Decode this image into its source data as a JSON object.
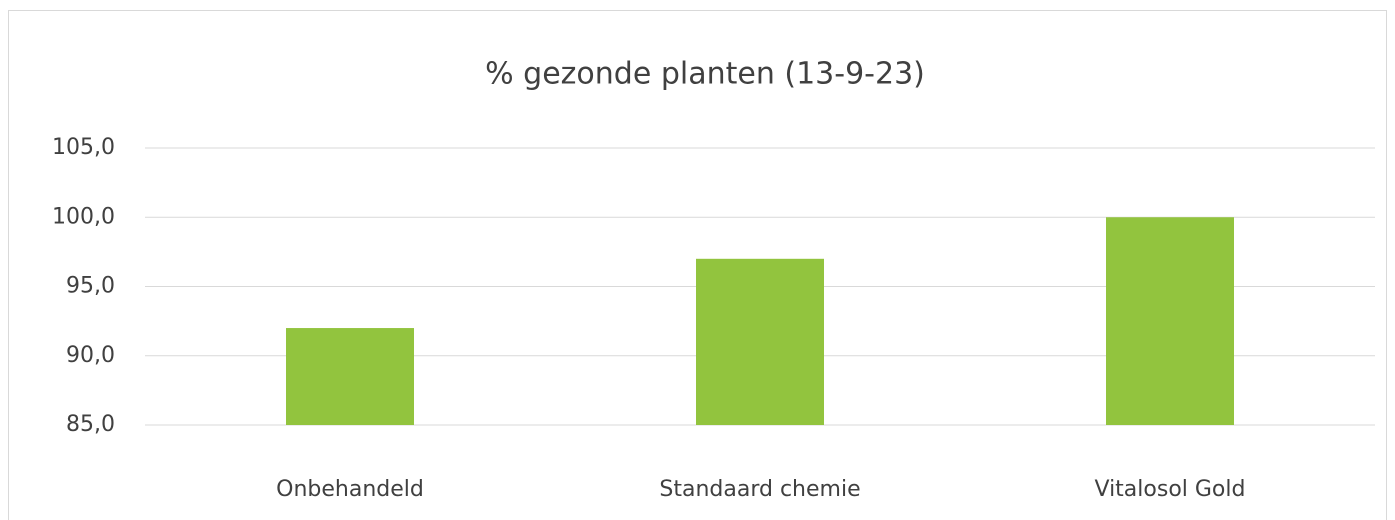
{
  "chart_data": {
    "type": "bar",
    "title": "% gezonde planten (13-9-23)",
    "categories": [
      "Onbehandeld",
      "Standaard chemie",
      "Vitalosol Gold"
    ],
    "values": [
      92,
      97,
      100
    ],
    "color": "#92c43e",
    "ylim": [
      85,
      105
    ],
    "yticks": [
      {
        "value": 85,
        "label": "85,0"
      },
      {
        "value": 90,
        "label": "90,0"
      },
      {
        "value": 95,
        "label": "95,0"
      },
      {
        "value": 100,
        "label": "100,0"
      },
      {
        "value": 105,
        "label": "105,0"
      }
    ],
    "grid": true
  }
}
